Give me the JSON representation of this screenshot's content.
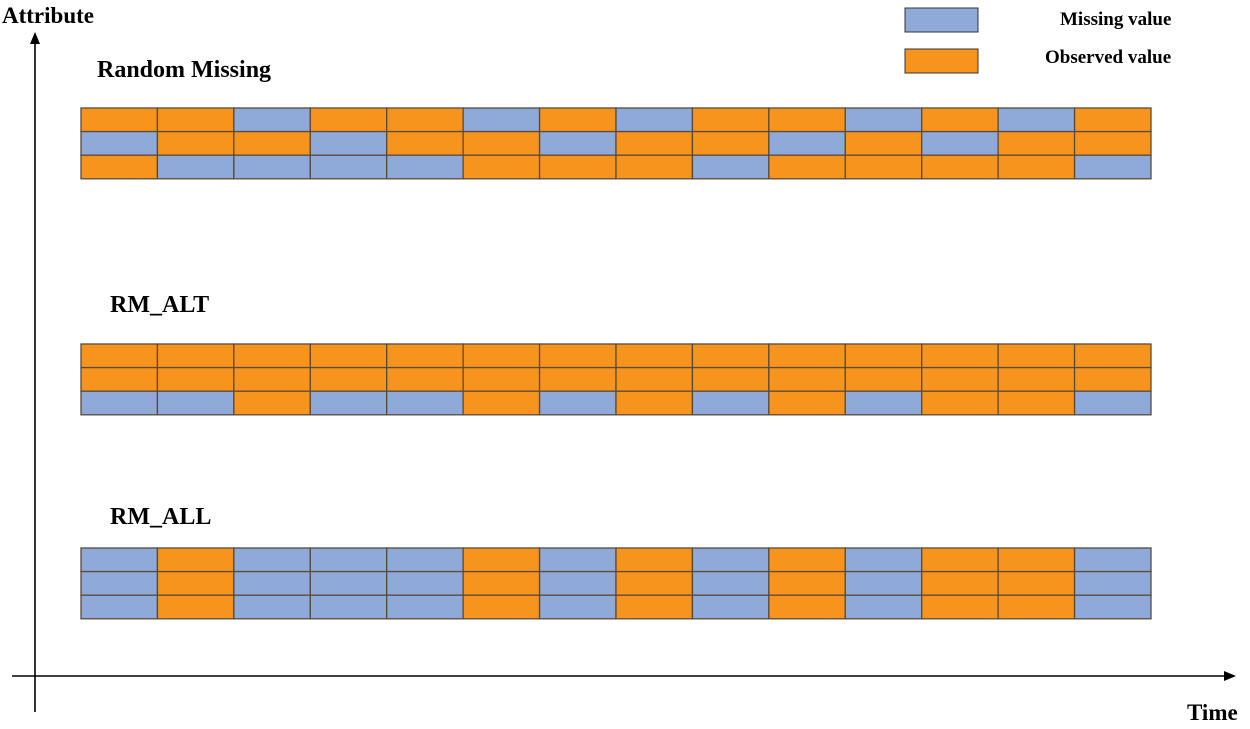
{
  "axes": {
    "y_label": "Attribute",
    "x_label": "Time"
  },
  "legend": {
    "missing": {
      "label": "Missing value",
      "color": "#8fa9d8"
    },
    "observed": {
      "label": "Observed value",
      "color": "#f7941e"
    }
  },
  "grid_line_color": "#5a4a3a",
  "panels": [
    {
      "title": "Random Missing",
      "rows": [
        "OOMOOMOMOOMOMO",
        "MOOMOOMOOMOMOO",
        "OMMMMOOOMOOOOM"
      ]
    },
    {
      "title": "RM_ALT",
      "rows": [
        "OOOOOOOOOOOOOO",
        "OOOOOOOOOOOOOO",
        "MMOMMOMOMOMOOM"
      ]
    },
    {
      "title": "RM_ALL",
      "rows": [
        "MOMMMOMOMOMOOM",
        "MOMMMOMOMOMOOM",
        "MOMMMOMOMOMOOM"
      ]
    }
  ]
}
